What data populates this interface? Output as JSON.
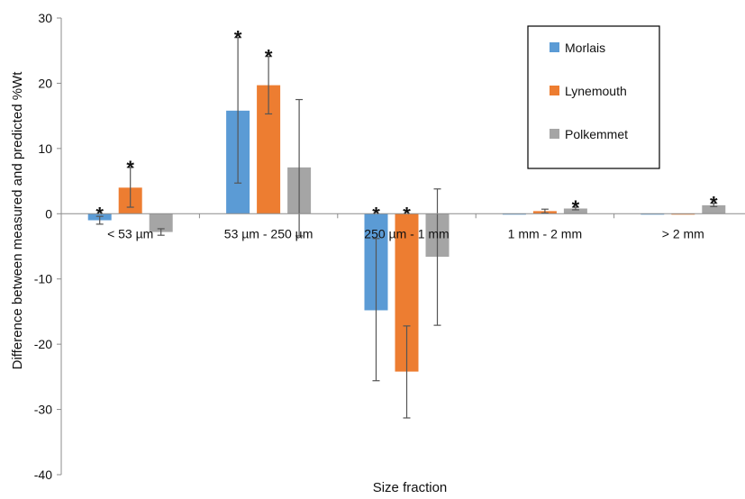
{
  "chart_data": {
    "type": "bar",
    "title": "",
    "xlabel": "Size fraction",
    "ylabel": "Difference between measured and predicted %Wt",
    "ylim": [
      -40,
      30
    ],
    "yticks": [
      30,
      20,
      10,
      0,
      -10,
      -20,
      -30,
      -40
    ],
    "grid": false,
    "legend_position": "top-right",
    "categories": [
      "< 53 µm",
      "53 µm - 250 µm",
      "250 µm - 1 mm",
      "1 mm - 2 mm",
      "> 2 mm"
    ],
    "series": [
      {
        "name": "Morlais",
        "color": "#5b9bd5",
        "values": [
          -1.0,
          15.8,
          -14.8,
          0.0,
          0.0
        ],
        "err_low": [
          -1.6,
          4.7,
          -25.6,
          0.0,
          0.0
        ],
        "err_high": [
          -0.4,
          27.0,
          -3.8,
          0.0,
          0.0
        ],
        "significant": [
          true,
          true,
          true,
          false,
          false
        ]
      },
      {
        "name": "Lynemouth",
        "color": "#ed7d31",
        "values": [
          4.0,
          19.7,
          -24.2,
          0.4,
          0.0
        ],
        "err_low": [
          1.0,
          15.3,
          -31.3,
          0.1,
          0.0
        ],
        "err_high": [
          7.1,
          24.1,
          -17.2,
          0.7,
          0.0
        ],
        "significant": [
          true,
          true,
          true,
          false,
          false
        ]
      },
      {
        "name": "Polkemmet",
        "color": "#a5a5a5",
        "values": [
          -2.8,
          7.1,
          -6.6,
          0.8,
          1.3
        ],
        "err_low": [
          -3.3,
          -3.4,
          -17.1,
          0.6,
          1.1
        ],
        "err_high": [
          -2.3,
          17.5,
          3.8,
          1.0,
          1.6
        ],
        "significant": [
          false,
          false,
          false,
          true,
          true
        ]
      }
    ],
    "significance_marker": "*"
  }
}
